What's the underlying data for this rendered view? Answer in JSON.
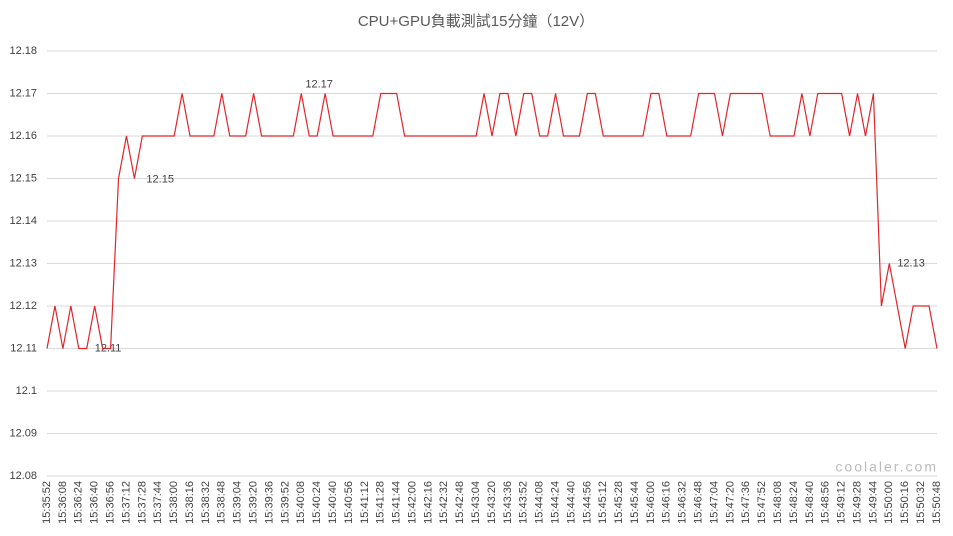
{
  "chart_data": {
    "type": "line",
    "title": "CPU+GPU負載測試15分鐘（12V）",
    "watermark": "coolaler.com",
    "categories": [
      "15:35:52",
      null,
      "15:36:08",
      null,
      "15:36:24",
      null,
      "15:36:40",
      null,
      "15:36:56",
      null,
      "15:37:12",
      null,
      "15:37:28",
      null,
      "15:37:44",
      null,
      "15:38:00",
      null,
      "15:38:16",
      null,
      "15:38:32",
      null,
      "15:38:48",
      null,
      "15:39:04",
      null,
      "15:39:20",
      null,
      "15:39:36",
      null,
      "15:39:52",
      null,
      "15:40:08",
      null,
      "15:40:24",
      null,
      "15:40:40",
      null,
      "15:40:56",
      null,
      "15:41:12",
      null,
      "15:41:28",
      null,
      "15:41:44",
      null,
      "15:42:00",
      null,
      "15:42:16",
      null,
      "15:42:32",
      null,
      "15:42:48",
      null,
      "15:43:04",
      null,
      "15:43:20",
      null,
      "15:43:36",
      null,
      "15:43:52",
      null,
      "15:44:08",
      null,
      "15:44:24",
      null,
      "15:44:40",
      null,
      "15:44:56",
      null,
      "15:45:12",
      null,
      "15:45:28",
      null,
      "15:45:44",
      null,
      "15:46:00",
      null,
      "15:46:16",
      null,
      "15:46:32",
      null,
      "15:46:48",
      null,
      "15:47:04",
      null,
      "15:47:20",
      null,
      "15:47:36",
      null,
      "15:47:52",
      null,
      "15:48:08",
      null,
      "15:48:24",
      null,
      "15:48:40",
      null,
      "15:48:56",
      null,
      "15:49:12",
      null,
      "15:49:28",
      null,
      "15:49:44",
      null,
      "15:50:00",
      null,
      "15:50:16",
      null,
      "15:50:32",
      null,
      "15:50:48"
    ],
    "series": [
      {
        "color": "#e0262b",
        "values": [
          12.11,
          12.12,
          12.11,
          12.12,
          12.11,
          12.11,
          12.12,
          12.11,
          12.11,
          12.15,
          12.16,
          12.15,
          12.16,
          12.16,
          12.16,
          12.16,
          12.16,
          12.17,
          12.16,
          12.16,
          12.16,
          12.16,
          12.17,
          12.16,
          12.16,
          12.16,
          12.17,
          12.16,
          12.16,
          12.16,
          12.16,
          12.16,
          12.17,
          12.16,
          12.16,
          12.17,
          12.16,
          12.16,
          12.16,
          12.16,
          12.16,
          12.16,
          12.17,
          12.17,
          12.17,
          12.16,
          12.16,
          12.16,
          12.16,
          12.16,
          12.16,
          12.16,
          12.16,
          12.16,
          12.16,
          12.17,
          12.16,
          12.17,
          12.17,
          12.16,
          12.17,
          12.17,
          12.16,
          12.16,
          12.17,
          12.16,
          12.16,
          12.16,
          12.17,
          12.17,
          12.16,
          12.16,
          12.16,
          12.16,
          12.16,
          12.16,
          12.17,
          12.17,
          12.16,
          12.16,
          12.16,
          12.16,
          12.17,
          12.17,
          12.17,
          12.16,
          12.17,
          12.17,
          12.17,
          12.17,
          12.17,
          12.16,
          12.16,
          12.16,
          12.16,
          12.17,
          12.16,
          12.17,
          12.17,
          12.17,
          12.17,
          12.16,
          12.17,
          12.16,
          12.17,
          12.12,
          12.13,
          12.12,
          12.11,
          12.12,
          12.12,
          12.12,
          12.11
        ],
        "value_labels": [
          null,
          null,
          null,
          null,
          null,
          "12.11",
          null,
          null,
          null,
          null,
          null,
          "12.15",
          null,
          null,
          null,
          null,
          null,
          null,
          null,
          null,
          null,
          null,
          null,
          null,
          null,
          null,
          null,
          null,
          null,
          null,
          null,
          null,
          null,
          null,
          null,
          "12.17",
          null,
          null,
          null,
          null,
          null,
          null,
          null,
          null,
          null,
          null,
          null,
          null,
          null,
          null,
          null,
          null,
          null,
          null,
          null,
          null,
          null,
          null,
          null,
          null,
          null,
          null,
          null,
          null,
          null,
          null,
          null,
          null,
          null,
          null,
          null,
          null,
          null,
          null,
          null,
          null,
          null,
          null,
          null,
          null,
          null,
          null,
          null,
          null,
          null,
          null,
          null,
          null,
          null,
          null,
          null,
          null,
          null,
          null,
          null,
          null,
          null,
          null,
          null,
          null,
          null,
          null,
          null,
          null,
          null,
          null,
          "12.13",
          null,
          null,
          null,
          null,
          null,
          null
        ]
      }
    ],
    "ylim": [
      12.08,
      12.18
    ],
    "yticks": [
      12.08,
      12.09,
      12.1,
      12.11,
      12.12,
      12.13,
      12.14,
      12.15,
      12.16,
      12.17,
      12.18
    ],
    "grid": true
  }
}
